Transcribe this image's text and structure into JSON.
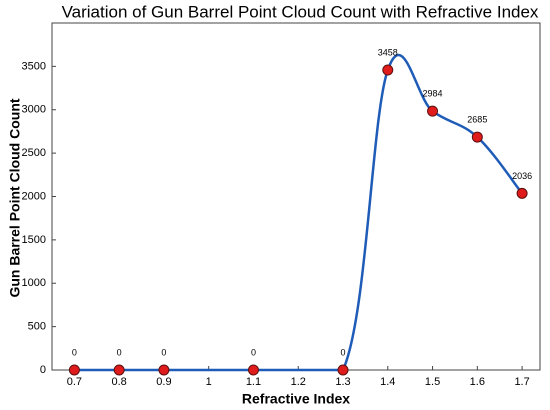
{
  "chart_data": {
    "type": "line",
    "title": "Variation of Gun Barrel Point Cloud Count with Refractive Index",
    "x_label": "Refractive Index",
    "y_label": "Gun Barrel Point Cloud Count",
    "x": [
      0.7,
      0.8,
      0.9,
      1.1,
      1.3,
      1.4,
      1.5,
      1.6,
      1.7
    ],
    "series": [
      {
        "name": "Point Cloud Count",
        "color": "#1f5cb8",
        "marker_color": "#e01b1b",
        "values": [
          0,
          0,
          0,
          0,
          0,
          3458,
          2984,
          2685,
          2036
        ]
      }
    ],
    "xlim": [
      0.65,
      1.74
    ],
    "xticks": [
      0.7,
      0.8,
      0.9,
      1,
      1.1,
      1.2,
      1.3,
      1.4,
      1.5,
      1.6,
      1.7
    ],
    "ylim": [
      0,
      4000
    ],
    "yticks": [
      0,
      500,
      1000,
      1500,
      2000,
      2500,
      3000,
      3500
    ]
  }
}
